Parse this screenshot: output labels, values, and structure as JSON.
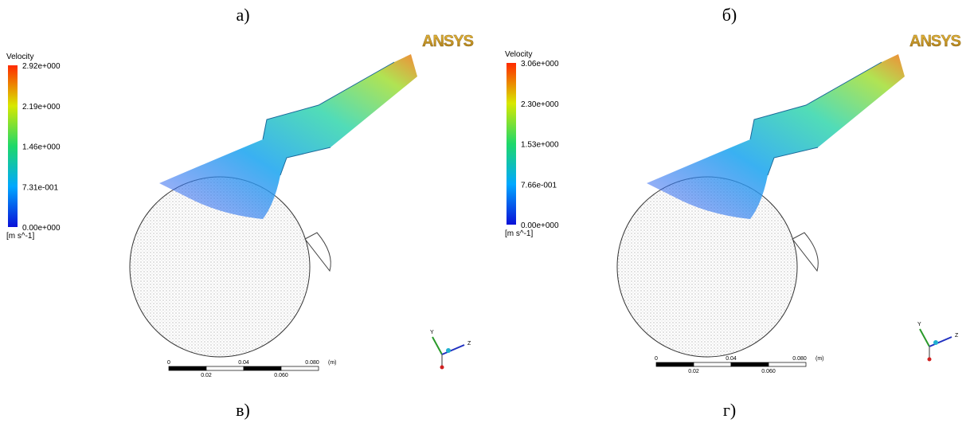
{
  "captions": [
    "а)",
    "б)",
    "в)",
    "г)"
  ],
  "panels": [
    {
      "logo": "ANSYS",
      "legend": {
        "title": "Velocity",
        "ticks": [
          "2.92e+000",
          "2.19e+000",
          "1.46e+000",
          "7.31e-001",
          "0.00e+000"
        ],
        "unit": "[m s^-1]"
      },
      "scale": {
        "top": [
          "0",
          "0.04",
          "0.080",
          "(m)"
        ],
        "bottom": [
          "0.02",
          "0.060"
        ]
      },
      "axes": [
        "Y",
        "Z"
      ]
    },
    {
      "logo": "ANSYS",
      "legend": {
        "title": "Velocity",
        "ticks": [
          "3.06e+000",
          "2.30e+000",
          "1.53e+000",
          "7.66e-001",
          "0.00e+000"
        ],
        "unit": "[m s^-1]"
      },
      "scale": {
        "top": [
          "0",
          "0.04",
          "0.080",
          "(m)"
        ],
        "bottom": [
          "0.02",
          "0.060"
        ]
      },
      "axes": [
        "Y",
        "Z"
      ]
    }
  ]
}
